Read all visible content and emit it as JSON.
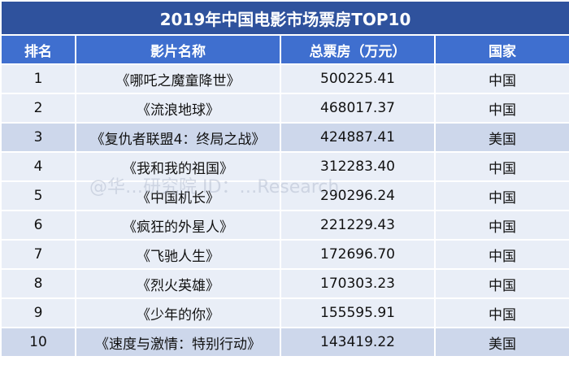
{
  "table": {
    "title": "2019年中国电影市场票房TOP10",
    "headers": [
      "排名",
      "影片名称",
      "总票房（万元）",
      "国家"
    ],
    "rows": [
      {
        "rank": "1",
        "title": "《哪吒之魔童降世》",
        "box_office": "500225.41",
        "country": "中国"
      },
      {
        "rank": "2",
        "title": "《流浪地球》",
        "box_office": "468017.37",
        "country": "中国"
      },
      {
        "rank": "3",
        "title": "《复仇者联盟4：终局之战》",
        "box_office": "424887.41",
        "country": "美国"
      },
      {
        "rank": "4",
        "title": "《我和我的祖国》",
        "box_office": "312283.40",
        "country": "中国"
      },
      {
        "rank": "5",
        "title": "《中国机长》",
        "box_office": "290296.24",
        "country": "中国"
      },
      {
        "rank": "6",
        "title": "《疯狂的外星人》",
        "box_office": "221229.43",
        "country": "中国"
      },
      {
        "rank": "7",
        "title": "《飞驰人生》",
        "box_office": "172696.70",
        "country": "中国"
      },
      {
        "rank": "8",
        "title": "《烈火英雄》",
        "box_office": "170303.23",
        "country": "中国"
      },
      {
        "rank": "9",
        "title": "《少年的你》",
        "box_office": "155595.91",
        "country": "中国"
      },
      {
        "rank": "10",
        "title": "《速度与激情：特别行动》",
        "box_office": "143419.22",
        "country": "美国"
      }
    ]
  },
  "watermark": "@华…研究院 ID：…Research",
  "colors": {
    "title_bg": "#2f529d",
    "header_bg": "#3f6fcf",
    "row_bg": "#e9eef7",
    "us_row_bg": "#cdd7eb"
  }
}
